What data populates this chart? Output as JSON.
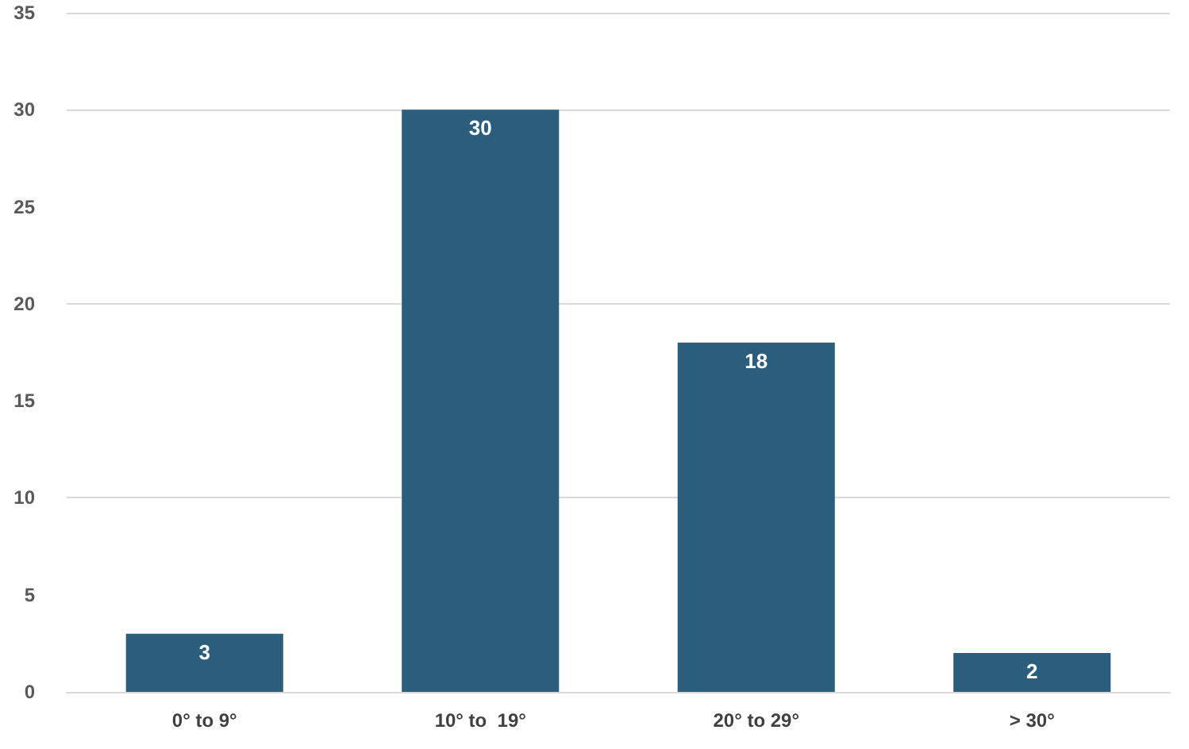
{
  "chart_data": {
    "type": "bar",
    "categories": [
      "0° to 9°",
      "10° to  19°",
      "20° to 29°",
      "> 30°"
    ],
    "values": [
      3,
      30,
      18,
      2
    ],
    "color": "#2b5d7d",
    "ylim": [
      0,
      35
    ],
    "yticks": [
      0,
      5,
      10,
      15,
      20,
      25,
      30,
      35
    ],
    "grid": "y",
    "data_labels": true
  }
}
